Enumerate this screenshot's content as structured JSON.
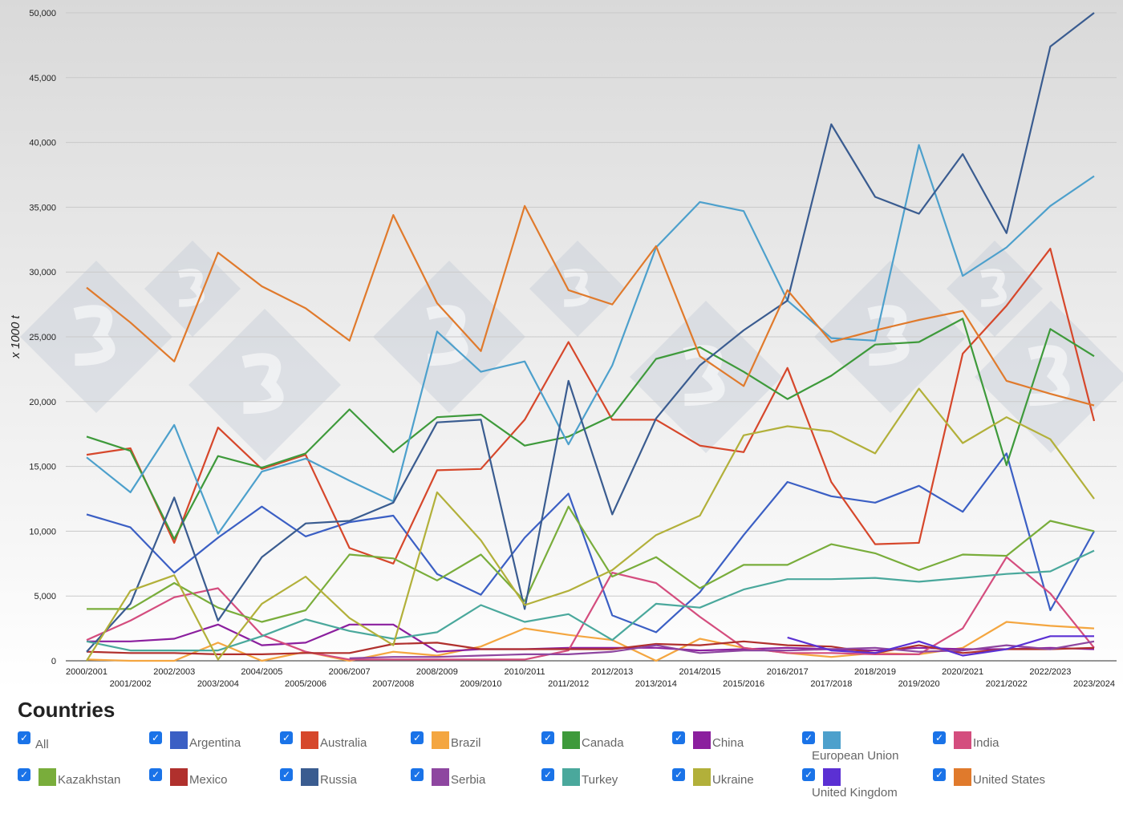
{
  "chart_data": {
    "type": "line",
    "ylabel": "x 1000 t",
    "ylim": [
      0,
      50000
    ],
    "yticks": [
      "0",
      "5,000",
      "10,000",
      "15,000",
      "20,000",
      "25,000",
      "30,000",
      "35,000",
      "40,000",
      "45,000",
      "50,000"
    ],
    "categories": [
      "2000/2001",
      "2001/2002",
      "2002/2003",
      "2003/2004",
      "2004/2005",
      "2005/2006",
      "2006/2007",
      "2007/2008",
      "2008/2009",
      "2009/2010",
      "2010/2011",
      "2011/2012",
      "2012/2013",
      "2013/2014",
      "2014/2015",
      "2015/2016",
      "2016/2017",
      "2017/2018",
      "2018/2019",
      "2019/2020",
      "2020/2021",
      "2021/2022",
      "2022/2023",
      "2023/2024"
    ],
    "grid": true,
    "series": [
      {
        "name": "Argentina",
        "color": "#3b5fc4",
        "values": [
          11300,
          10300,
          6800,
          9500,
          11900,
          9600,
          10700,
          11200,
          6700,
          5100,
          9500,
          12900,
          3500,
          2200,
          5300,
          9700,
          13800,
          12700,
          12200,
          13500,
          11500,
          16000,
          3900,
          10000
        ]
      },
      {
        "name": "Australia",
        "color": "#d6472b",
        "values": [
          15900,
          16400,
          9100,
          18000,
          14800,
          15900,
          8700,
          7500,
          14700,
          14800,
          18600,
          24600,
          18600,
          18600,
          16600,
          16100,
          22600,
          13800,
          9000,
          9100,
          23700,
          27400,
          31800,
          18500
        ]
      },
      {
        "name": "Brazil",
        "color": "#f4a640",
        "values": [
          100,
          0,
          0,
          1400,
          0,
          700,
          0,
          700,
          400,
          1100,
          2500,
          2000,
          1600,
          0,
          1700,
          1000,
          600,
          300,
          600,
          500,
          1000,
          3000,
          2700,
          2500
        ]
      },
      {
        "name": "Canada",
        "color": "#3e9a3b",
        "values": [
          17300,
          16200,
          9400,
          15800,
          14900,
          16000,
          19400,
          16100,
          18800,
          19000,
          16600,
          17300,
          18900,
          23300,
          24200,
          22300,
          20200,
          22000,
          24400,
          24600,
          26400,
          15100,
          25600,
          23500
        ]
      },
      {
        "name": "China",
        "color": "#8b1f9e",
        "values": [
          1500,
          1500,
          1700,
          2800,
          1200,
          1400,
          2800,
          2800,
          700,
          900,
          900,
          1000,
          1000,
          1000,
          800,
          900,
          1000,
          900,
          800,
          1000,
          900,
          900,
          1000,
          900
        ]
      },
      {
        "name": "European Union",
        "color": "#4da0cc",
        "values": [
          15700,
          13000,
          18200,
          9800,
          14600,
          15600,
          13900,
          12300,
          25400,
          22300,
          23100,
          16700,
          22800,
          31900,
          35400,
          34700,
          27800,
          24900,
          24700,
          39800,
          29700,
          31900,
          35100,
          37400
        ]
      },
      {
        "name": "India",
        "color": "#d44d7e",
        "values": [
          1600,
          3100,
          4900,
          5600,
          2000,
          700,
          100,
          100,
          100,
          100,
          100,
          800,
          6800,
          6000,
          3400,
          1000,
          600,
          600,
          500,
          500,
          2500,
          8000,
          5200,
          1000
        ]
      },
      {
        "name": "Kazakhstan",
        "color": "#79ad3b",
        "values": [
          4000,
          4000,
          6000,
          4100,
          3000,
          3900,
          8200,
          7900,
          6200,
          8200,
          4600,
          11900,
          6500,
          8000,
          5600,
          7400,
          7400,
          9000,
          8300,
          7000,
          8200,
          8100,
          10800,
          10000
        ]
      },
      {
        "name": "Mexico",
        "color": "#b0302d",
        "values": [
          700,
          600,
          600,
          500,
          500,
          600,
          600,
          1300,
          1400,
          900,
          900,
          900,
          900,
          1300,
          1200,
          1500,
          1200,
          1100,
          600,
          1200,
          600,
          900,
          900,
          1000
        ]
      },
      {
        "name": "Russia",
        "color": "#3a5c90",
        "values": [
          700,
          4400,
          12600,
          3100,
          8000,
          10600,
          10800,
          12200,
          18400,
          18600,
          4000,
          21600,
          11300,
          18700,
          22800,
          25500,
          27800,
          41400,
          35800,
          34500,
          39100,
          33000,
          47400,
          50000
        ]
      },
      {
        "name": "Serbia",
        "color": "#8e46a0",
        "values": [
          null,
          null,
          null,
          null,
          null,
          null,
          200,
          300,
          300,
          400,
          500,
          500,
          700,
          1200,
          600,
          800,
          800,
          900,
          1000,
          700,
          800,
          1200,
          900,
          1500
        ]
      },
      {
        "name": "Turkey",
        "color": "#4aa89c",
        "values": [
          1500,
          800,
          800,
          800,
          1900,
          3200,
          2300,
          1700,
          2200,
          4300,
          3000,
          3600,
          1600,
          4400,
          4100,
          5500,
          6300,
          6300,
          6400,
          6100,
          6400,
          6700,
          6900,
          8500
        ]
      },
      {
        "name": "Ukraine",
        "color": "#b2b03a",
        "values": [
          0,
          5400,
          6600,
          100,
          4400,
          6500,
          3300,
          1200,
          13000,
          9300,
          4300,
          5400,
          7000,
          9700,
          11200,
          17400,
          18100,
          17700,
          16000,
          21000,
          16800,
          18800,
          17100,
          12500
        ]
      },
      {
        "name": "United Kingdom",
        "color": "#5b30d3",
        "values": [
          null,
          null,
          null,
          null,
          null,
          null,
          null,
          null,
          null,
          null,
          null,
          null,
          null,
          null,
          null,
          null,
          1800,
          800,
          600,
          1500,
          400,
          900,
          1900,
          1900
        ]
      },
      {
        "name": "United States",
        "color": "#e07a2c",
        "values": [
          28800,
          26100,
          23100,
          31500,
          28900,
          27200,
          24700,
          34400,
          27600,
          23900,
          35100,
          28600,
          27500,
          32000,
          23500,
          21200,
          28600,
          24600,
          25500,
          26300,
          27000,
          21600,
          20600,
          19700
        ]
      }
    ]
  },
  "legend": {
    "title": "Countries",
    "all_label": "All",
    "check_glyph": "✓"
  }
}
